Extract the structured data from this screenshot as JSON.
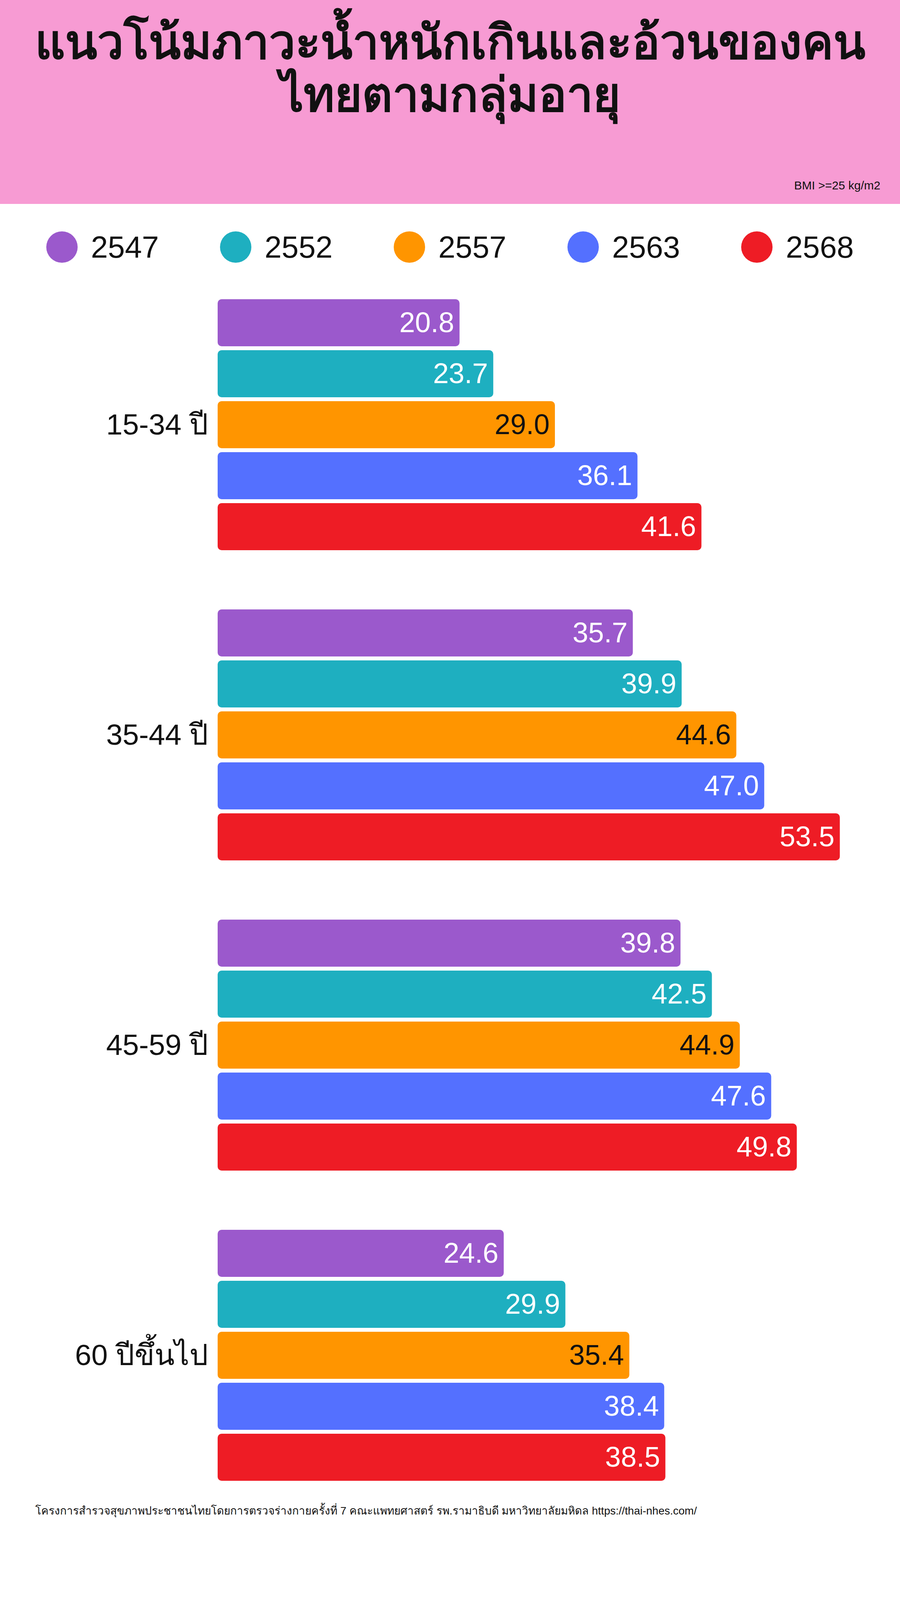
{
  "chart_data": {
    "type": "bar",
    "title": "แนวโน้มภาวะน้ำหนักเกินและอ้วนของคนไทยตามกลุ่มอายุ",
    "subtitle": "BMI >=25 kg/m2",
    "caption": "โครงการสำรวจสุขภาพประชาชนไทยโดยการตรวจร่างกายครั้งที่ 7 คณะแพทยศาสตร์ รพ.รามาธิบดี มหาวิทยาลัยมหิดล https://thai-nhes.com/",
    "orientation": "horizontal",
    "categories": [
      "15-34 ปี",
      "35-44 ปี",
      "45-59 ปี",
      "60 ปีขึ้นไป"
    ],
    "series": [
      {
        "name": "2547",
        "color": "#9b59cc",
        "values": [
          20.8,
          35.7,
          39.8,
          24.6
        ],
        "value_labels": [
          "20.8",
          "35.7",
          "39.8",
          "24.6"
        ]
      },
      {
        "name": "2552",
        "color": "#1eafc0",
        "values": [
          23.7,
          39.9,
          42.5,
          29.9
        ],
        "value_labels": [
          "23.7",
          "39.9",
          "42.5",
          "29.9"
        ]
      },
      {
        "name": "2557",
        "color": "#ff9500",
        "values": [
          29.0,
          44.6,
          44.9,
          35.4
        ],
        "value_labels": [
          "29.0",
          "44.6",
          "44.9",
          "35.4"
        ]
      },
      {
        "name": "2563",
        "color": "#5470ff",
        "values": [
          36.1,
          47.0,
          47.6,
          38.4
        ],
        "value_labels": [
          "36.1",
          "47.0",
          "47.6",
          "38.4"
        ]
      },
      {
        "name": "2568",
        "color": "#ee1c25",
        "values": [
          41.6,
          53.5,
          49.8,
          38.5
        ],
        "value_labels": [
          "41.6",
          "53.5",
          "49.8",
          "38.5"
        ]
      }
    ],
    "xlim": [
      0,
      58
    ],
    "xticks": [],
    "tick_labels": "y",
    "data_labels": true,
    "legend": "top",
    "grid": false
  }
}
